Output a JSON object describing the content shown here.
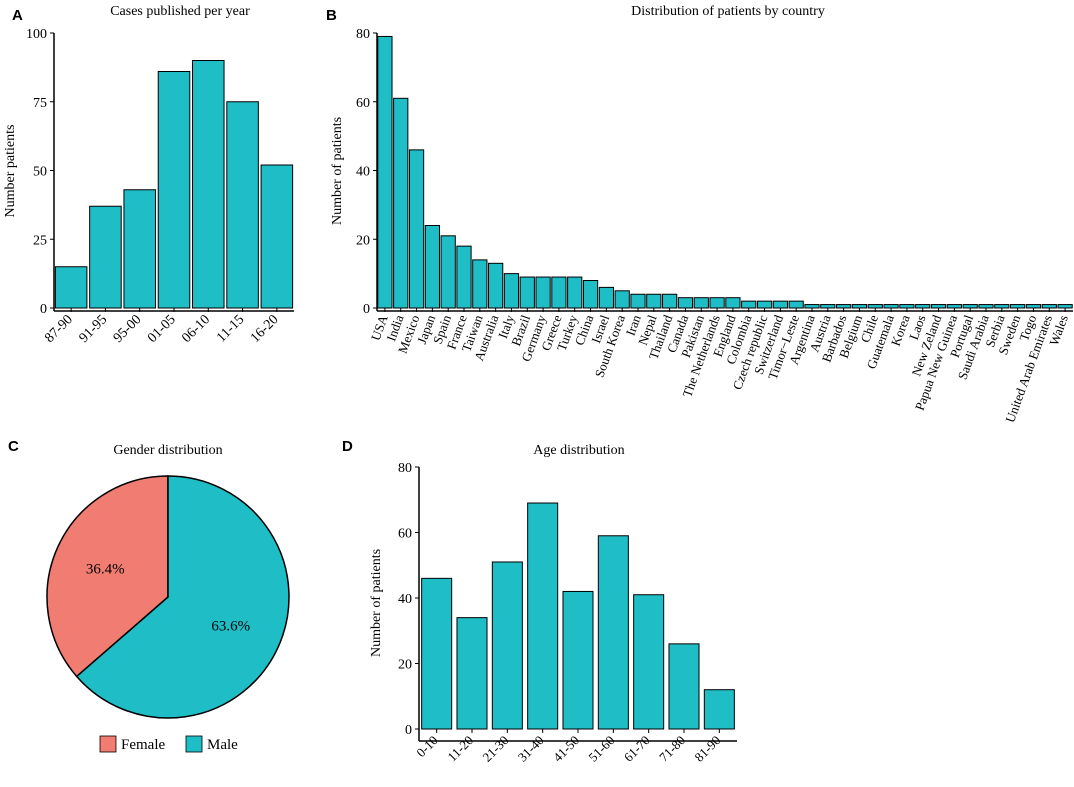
{
  "colors": {
    "bar_fill": "#1FBDC6",
    "female": "#F07C72",
    "male": "#1FBDC6",
    "outline": "#000000"
  },
  "panels": {
    "A": {
      "letter": "A"
    },
    "B": {
      "letter": "B"
    },
    "C": {
      "letter": "C"
    },
    "D": {
      "letter": "D"
    }
  },
  "chart_data": [
    {
      "panel": "A",
      "type": "bar",
      "title": "Cases published per year",
      "xlabel": "",
      "ylabel": "Number patients",
      "categories": [
        "87-90",
        "91-95",
        "95-00",
        "01-05",
        "06-10",
        "11-15",
        "16-20"
      ],
      "values": [
        15,
        37,
        43,
        86,
        90,
        75,
        52
      ],
      "ylim": [
        0,
        100
      ],
      "yticks": [
        0,
        25,
        50,
        75,
        100
      ]
    },
    {
      "panel": "B",
      "type": "bar",
      "title": "Distribution of patients by country",
      "xlabel": "",
      "ylabel": "Number of patients",
      "categories": [
        "USA",
        "India",
        "Mexico",
        "Japan",
        "Spain",
        "France",
        "Taiwan",
        "Australia",
        "Italy",
        "Brazil",
        "Germany",
        "Greece",
        "Turkey",
        "China",
        "Israel",
        "South Korea",
        "Iran",
        "Nepal",
        "Thailand",
        "Canada",
        "Pakistan",
        "The Netherlands",
        "England",
        "Colombia",
        "Czech republic",
        "Switzerland",
        "Timor−Leste",
        "Argentina",
        "Austria",
        "Barbados",
        "Belgium",
        "Chile",
        "Guatemala",
        "Korea",
        "Laos",
        "New Zeland",
        "Papua New Guinea",
        "Portugal",
        "Saudi Arabia",
        "Serbia",
        "Sweden",
        "Togo",
        "United Arab Emirates",
        "Wales"
      ],
      "values": [
        79,
        61,
        46,
        24,
        21,
        18,
        14,
        13,
        10,
        9,
        9,
        9,
        9,
        8,
        6,
        5,
        4,
        4,
        4,
        3,
        3,
        3,
        3,
        2,
        2,
        2,
        2,
        1,
        1,
        1,
        1,
        1,
        1,
        1,
        1,
        1,
        1,
        1,
        1,
        1,
        1,
        1,
        1,
        1
      ],
      "ylim": [
        0,
        80
      ],
      "yticks": [
        0,
        20,
        40,
        60,
        80
      ]
    },
    {
      "panel": "C",
      "type": "pie",
      "title": "Gender distribution",
      "labels": [
        "Female",
        "Male"
      ],
      "values": [
        36.4,
        63.6
      ],
      "value_labels": [
        "36.4%",
        "63.6%"
      ],
      "legend_position": "bottom"
    },
    {
      "panel": "D",
      "type": "bar",
      "title": "Age distribution",
      "xlabel": "",
      "ylabel": "Number of patients",
      "categories": [
        "0-10",
        "11-20",
        "21-30",
        "31-40",
        "41-50",
        "51-60",
        "61-70",
        "71-80",
        "81-90"
      ],
      "values": [
        46,
        34,
        51,
        69,
        42,
        59,
        41,
        26,
        12
      ],
      "ylim": [
        0,
        80
      ],
      "yticks": [
        0,
        20,
        40,
        60,
        80
      ]
    }
  ]
}
